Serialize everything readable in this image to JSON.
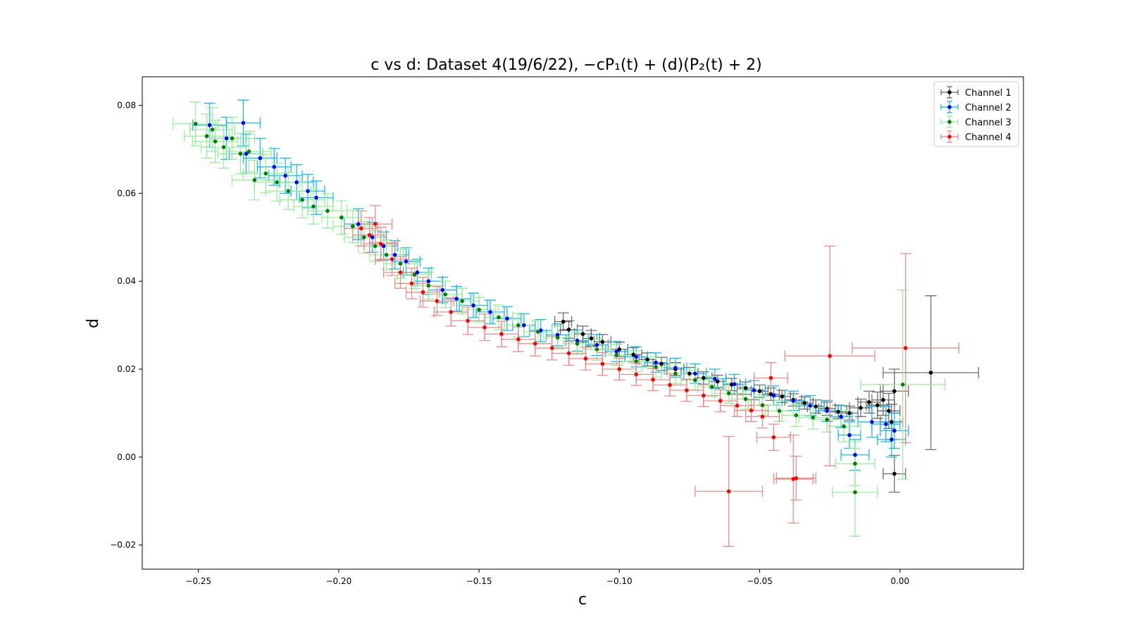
{
  "chart_data": {
    "type": "scatter",
    "title": "c vs d: Dataset 4(19/6/22),  −cP₁(t) + (d)(P₂(t) + 2)",
    "xlabel": "c",
    "ylabel": "d",
    "xlim": [
      -0.27,
      0.044
    ],
    "ylim": [
      -0.0255,
      0.0865
    ],
    "xticks": [
      -0.25,
      -0.2,
      -0.15,
      -0.1,
      -0.05,
      0.0
    ],
    "xtick_labels": [
      "−0.25",
      "−0.20",
      "−0.15",
      "−0.10",
      "−0.05",
      "0.00"
    ],
    "yticks": [
      -0.02,
      0.0,
      0.02,
      0.04,
      0.06,
      0.08
    ],
    "ytick_labels": [
      "−0.02",
      "0.00",
      "0.02",
      "0.04",
      "0.06",
      "0.08"
    ],
    "grid": false,
    "legend_position": "top-right",
    "series": [
      {
        "name": "Channel 1",
        "marker_color": "#000000",
        "errorbar_color": "#606060",
        "points": [
          [
            -0.12,
            0.0308,
            0.003,
            0.002
          ],
          [
            -0.118,
            0.029,
            0.003,
            0.002
          ],
          [
            -0.113,
            0.028,
            0.003,
            0.0018
          ],
          [
            -0.11,
            0.027,
            0.003,
            0.0018
          ],
          [
            -0.106,
            0.0262,
            0.003,
            0.0017
          ],
          [
            -0.1,
            0.0245,
            0.003,
            0.0016
          ],
          [
            -0.095,
            0.0233,
            0.003,
            0.0016
          ],
          [
            -0.09,
            0.0222,
            0.003,
            0.0015
          ],
          [
            -0.085,
            0.0212,
            0.003,
            0.0015
          ],
          [
            -0.08,
            0.02,
            0.003,
            0.0015
          ],
          [
            -0.075,
            0.019,
            0.003,
            0.0014
          ],
          [
            -0.07,
            0.018,
            0.003,
            0.0014
          ],
          [
            -0.065,
            0.0172,
            0.003,
            0.0014
          ],
          [
            -0.06,
            0.0165,
            0.003,
            0.0014
          ],
          [
            -0.055,
            0.0157,
            0.003,
            0.0014
          ],
          [
            -0.05,
            0.015,
            0.003,
            0.0014
          ],
          [
            -0.046,
            0.0143,
            0.003,
            0.0014
          ],
          [
            -0.042,
            0.0138,
            0.003,
            0.0014
          ],
          [
            -0.038,
            0.013,
            0.003,
            0.0014
          ],
          [
            -0.034,
            0.0123,
            0.003,
            0.0014
          ],
          [
            -0.03,
            0.0115,
            0.003,
            0.0015
          ],
          [
            -0.026,
            0.011,
            0.003,
            0.0015
          ],
          [
            -0.022,
            0.0103,
            0.003,
            0.0015
          ],
          [
            -0.018,
            0.01,
            0.003,
            0.0016
          ],
          [
            -0.014,
            0.0112,
            0.004,
            0.002
          ],
          [
            -0.011,
            0.0125,
            0.004,
            0.0025
          ],
          [
            -0.008,
            0.0118,
            0.004,
            0.003
          ],
          [
            -0.006,
            0.013,
            0.004,
            0.0035
          ],
          [
            -0.004,
            0.0105,
            0.004,
            0.004
          ],
          [
            -0.003,
            0.008,
            0.004,
            0.004
          ],
          [
            -0.002,
            0.015,
            0.005,
            0.005
          ],
          [
            -0.002,
            -0.0038,
            0.004,
            0.0042
          ],
          [
            0.011,
            0.0192,
            0.017,
            0.0175
          ]
        ]
      },
      {
        "name": "Channel 2",
        "marker_color": "#0000ff",
        "errorbar_color": "#00b4f0",
        "points": [
          [
            -0.246,
            0.0755,
            0.006,
            0.005
          ],
          [
            -0.24,
            0.0725,
            0.006,
            0.0048
          ],
          [
            -0.234,
            0.076,
            0.006,
            0.0052
          ],
          [
            -0.233,
            0.069,
            0.006,
            0.0045
          ],
          [
            -0.228,
            0.068,
            0.006,
            0.0045
          ],
          [
            -0.223,
            0.066,
            0.006,
            0.0042
          ],
          [
            -0.219,
            0.064,
            0.006,
            0.004
          ],
          [
            -0.215,
            0.0625,
            0.006,
            0.004
          ],
          [
            -0.211,
            0.0605,
            0.006,
            0.0038
          ],
          [
            -0.208,
            0.059,
            0.006,
            0.0038
          ],
          [
            -0.193,
            0.053,
            0.005,
            0.0035
          ],
          [
            -0.188,
            0.05,
            0.005,
            0.0034
          ],
          [
            -0.184,
            0.048,
            0.005,
            0.0032
          ],
          [
            -0.18,
            0.046,
            0.005,
            0.0032
          ],
          [
            -0.176,
            0.0445,
            0.005,
            0.0031
          ],
          [
            -0.172,
            0.042,
            0.005,
            0.003
          ],
          [
            -0.168,
            0.04,
            0.005,
            0.003
          ],
          [
            -0.163,
            0.038,
            0.005,
            0.0029
          ],
          [
            -0.158,
            0.036,
            0.005,
            0.0028
          ],
          [
            -0.152,
            0.0345,
            0.005,
            0.0028
          ],
          [
            -0.146,
            0.033,
            0.005,
            0.0027
          ],
          [
            -0.14,
            0.0315,
            0.005,
            0.0027
          ],
          [
            -0.134,
            0.03,
            0.004,
            0.0026
          ],
          [
            -0.128,
            0.0288,
            0.004,
            0.0025
          ],
          [
            -0.122,
            0.0278,
            0.004,
            0.0025
          ],
          [
            -0.115,
            0.0265,
            0.004,
            0.0024
          ],
          [
            -0.108,
            0.0255,
            0.004,
            0.0024
          ],
          [
            -0.101,
            0.024,
            0.004,
            0.0023
          ],
          [
            -0.094,
            0.0228,
            0.004,
            0.0023
          ],
          [
            -0.087,
            0.0215,
            0.004,
            0.0022
          ],
          [
            -0.08,
            0.0203,
            0.004,
            0.0022
          ],
          [
            -0.073,
            0.019,
            0.004,
            0.0022
          ],
          [
            -0.066,
            0.0178,
            0.004,
            0.0022
          ],
          [
            -0.059,
            0.0166,
            0.004,
            0.0022
          ],
          [
            -0.052,
            0.0152,
            0.004,
            0.0022
          ],
          [
            -0.045,
            0.014,
            0.004,
            0.0022
          ],
          [
            -0.038,
            0.0128,
            0.004,
            0.0022
          ],
          [
            -0.032,
            0.0117,
            0.004,
            0.0023
          ],
          [
            -0.026,
            0.0105,
            0.004,
            0.0024
          ],
          [
            -0.021,
            0.0092,
            0.004,
            0.0025
          ],
          [
            -0.018,
            0.005,
            0.004,
            0.003
          ],
          [
            -0.016,
            0.0005,
            0.005,
            0.0035
          ],
          [
            -0.01,
            0.008,
            0.005,
            0.0035
          ],
          [
            -0.005,
            0.0075,
            0.005,
            0.004
          ],
          [
            -0.003,
            0.004,
            0.005,
            0.004
          ],
          [
            -0.002,
            0.006,
            0.005,
            0.004
          ]
        ]
      },
      {
        "name": "Channel 3",
        "marker_color": "#008000",
        "errorbar_color": "#90ee90",
        "points": [
          [
            -0.251,
            0.0758,
            0.008,
            0.005
          ],
          [
            -0.247,
            0.073,
            0.008,
            0.005
          ],
          [
            -0.245,
            0.0745,
            0.008,
            0.005
          ],
          [
            -0.244,
            0.0718,
            0.008,
            0.0048
          ],
          [
            -0.241,
            0.0705,
            0.008,
            0.0048
          ],
          [
            -0.238,
            0.0725,
            0.008,
            0.0048
          ],
          [
            -0.235,
            0.069,
            0.008,
            0.0046
          ],
          [
            -0.232,
            0.0695,
            0.008,
            0.0046
          ],
          [
            -0.23,
            0.063,
            0.008,
            0.0045
          ],
          [
            -0.226,
            0.0645,
            0.008,
            0.0044
          ],
          [
            -0.222,
            0.0625,
            0.008,
            0.0043
          ],
          [
            -0.218,
            0.0605,
            0.008,
            0.0042
          ],
          [
            -0.213,
            0.0585,
            0.008,
            0.0041
          ],
          [
            -0.209,
            0.057,
            0.007,
            0.004
          ],
          [
            -0.204,
            0.056,
            0.007,
            0.0039
          ],
          [
            -0.199,
            0.0545,
            0.007,
            0.0038
          ],
          [
            -0.195,
            0.0525,
            0.007,
            0.0037
          ],
          [
            -0.191,
            0.05,
            0.007,
            0.0036
          ],
          [
            -0.187,
            0.048,
            0.006,
            0.0035
          ],
          [
            -0.183,
            0.046,
            0.006,
            0.0034
          ],
          [
            -0.178,
            0.044,
            0.006,
            0.0033
          ],
          [
            -0.173,
            0.0415,
            0.006,
            0.0032
          ],
          [
            -0.168,
            0.039,
            0.006,
            0.0031
          ],
          [
            -0.162,
            0.037,
            0.006,
            0.003
          ],
          [
            -0.156,
            0.0355,
            0.006,
            0.0029
          ],
          [
            -0.15,
            0.0335,
            0.006,
            0.0028
          ],
          [
            -0.143,
            0.0318,
            0.005,
            0.0028
          ],
          [
            -0.136,
            0.03,
            0.005,
            0.0027
          ],
          [
            -0.129,
            0.0285,
            0.005,
            0.0026
          ],
          [
            -0.122,
            0.0272,
            0.005,
            0.0026
          ],
          [
            -0.115,
            0.0258,
            0.005,
            0.0025
          ],
          [
            -0.108,
            0.0245,
            0.005,
            0.0025
          ],
          [
            -0.101,
            0.0232,
            0.005,
            0.0024
          ],
          [
            -0.094,
            0.0218,
            0.005,
            0.0024
          ],
          [
            -0.087,
            0.0205,
            0.005,
            0.0023
          ],
          [
            -0.08,
            0.019,
            0.005,
            0.0023
          ],
          [
            -0.073,
            0.0175,
            0.005,
            0.0023
          ],
          [
            -0.067,
            0.016,
            0.005,
            0.0023
          ],
          [
            -0.061,
            0.0145,
            0.005,
            0.0023
          ],
          [
            -0.055,
            0.0132,
            0.005,
            0.0023
          ],
          [
            -0.049,
            0.0118,
            0.005,
            0.0023
          ],
          [
            -0.043,
            0.0105,
            0.005,
            0.0024
          ],
          [
            -0.037,
            0.0095,
            0.005,
            0.0025
          ],
          [
            -0.031,
            0.009,
            0.005,
            0.0026
          ],
          [
            -0.026,
            0.0085,
            0.005,
            0.0028
          ],
          [
            -0.02,
            0.007,
            0.006,
            0.0035
          ],
          [
            -0.016,
            -0.0015,
            0.007,
            0.005
          ],
          [
            -0.016,
            -0.008,
            0.008,
            0.01
          ],
          [
            0.001,
            0.0165,
            0.015,
            0.0215
          ]
        ]
      },
      {
        "name": "Channel 4",
        "marker_color": "#ff0000",
        "errorbar_color": "#f08080",
        "points": [
          [
            -0.192,
            0.052,
            0.006,
            0.004
          ],
          [
            -0.189,
            0.0505,
            0.006,
            0.004
          ],
          [
            -0.187,
            0.053,
            0.006,
            0.0042
          ],
          [
            -0.185,
            0.0485,
            0.006,
            0.0038
          ],
          [
            -0.181,
            0.045,
            0.006,
            0.0037
          ],
          [
            -0.178,
            0.042,
            0.006,
            0.0036
          ],
          [
            -0.174,
            0.0395,
            0.006,
            0.0035
          ],
          [
            -0.17,
            0.0375,
            0.006,
            0.0034
          ],
          [
            -0.165,
            0.0355,
            0.006,
            0.0033
          ],
          [
            -0.16,
            0.033,
            0.006,
            0.0032
          ],
          [
            -0.154,
            0.031,
            0.006,
            0.0031
          ],
          [
            -0.148,
            0.0295,
            0.006,
            0.003
          ],
          [
            -0.142,
            0.028,
            0.006,
            0.0029
          ],
          [
            -0.136,
            0.0268,
            0.006,
            0.0028
          ],
          [
            -0.13,
            0.0258,
            0.006,
            0.0028
          ],
          [
            -0.124,
            0.0248,
            0.006,
            0.0027
          ],
          [
            -0.118,
            0.0236,
            0.006,
            0.0027
          ],
          [
            -0.112,
            0.0224,
            0.006,
            0.0026
          ],
          [
            -0.106,
            0.0212,
            0.006,
            0.0026
          ],
          [
            -0.1,
            0.02,
            0.006,
            0.0025
          ],
          [
            -0.094,
            0.0188,
            0.006,
            0.0025
          ],
          [
            -0.088,
            0.0176,
            0.006,
            0.0025
          ],
          [
            -0.082,
            0.0164,
            0.006,
            0.0025
          ],
          [
            -0.076,
            0.0152,
            0.006,
            0.0025
          ],
          [
            -0.07,
            0.014,
            0.006,
            0.0025
          ],
          [
            -0.064,
            0.0128,
            0.006,
            0.0025
          ],
          [
            -0.058,
            0.0117,
            0.006,
            0.0025
          ],
          [
            -0.053,
            0.0106,
            0.006,
            0.0025
          ],
          [
            -0.049,
            0.0092,
            0.006,
            0.0026
          ],
          [
            -0.046,
            0.018,
            0.006,
            0.0035
          ],
          [
            -0.045,
            0.0045,
            0.006,
            0.003
          ],
          [
            -0.038,
            -0.005,
            0.007,
            0.01
          ],
          [
            -0.037,
            -0.0048,
            0.007,
            0.005
          ],
          [
            -0.061,
            -0.0078,
            0.012,
            0.0125
          ],
          [
            -0.025,
            0.023,
            0.016,
            0.025
          ],
          [
            0.002,
            0.0248,
            0.019,
            0.0215
          ]
        ]
      }
    ]
  }
}
